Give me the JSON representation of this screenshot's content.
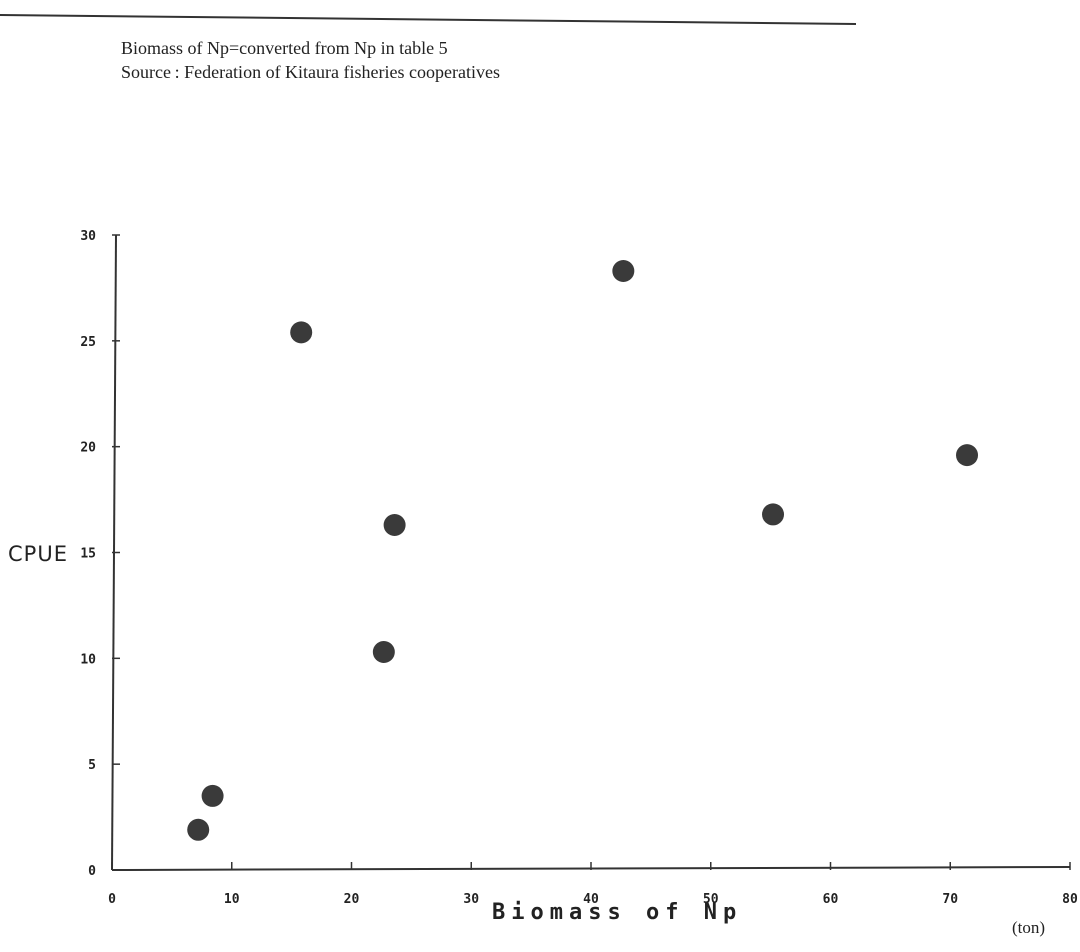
{
  "notes": {
    "line1": "Biomass of Np=converted from Np in table 5",
    "line2": "Source : Federation of Kitaura fisheries cooperatives"
  },
  "chart_data": {
    "type": "scatter",
    "title": "",
    "xlabel": "Biomass of Np",
    "x_unit": "(ton)",
    "ylabel": "CPUE",
    "xlim": [
      0,
      80
    ],
    "ylim": [
      0,
      30
    ],
    "x_ticks": [
      "0",
      "10",
      "20",
      "30",
      "40",
      "50",
      "60",
      "70",
      "80"
    ],
    "y_ticks": [
      "0",
      "5",
      "10",
      "15",
      "20",
      "25",
      "30"
    ],
    "grid": false,
    "series": [
      {
        "color": "#3a3a3a",
        "points": [
          {
            "x": 7.2,
            "y": 1.9
          },
          {
            "x": 8.4,
            "y": 3.5
          },
          {
            "x": 15.8,
            "y": 25.4
          },
          {
            "x": 22.7,
            "y": 10.3
          },
          {
            "x": 23.6,
            "y": 16.3
          },
          {
            "x": 42.7,
            "y": 28.3
          },
          {
            "x": 55.2,
            "y": 16.8
          },
          {
            "x": 71.4,
            "y": 19.6
          }
        ]
      }
    ]
  }
}
